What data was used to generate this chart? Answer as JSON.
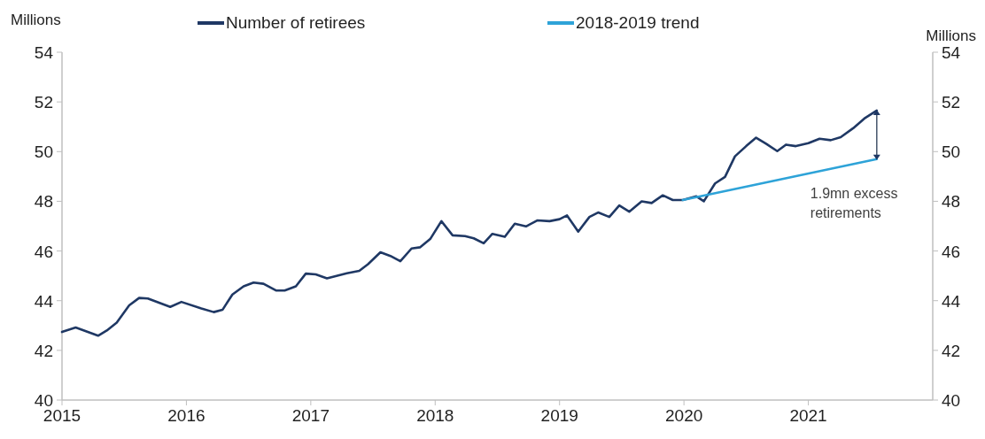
{
  "chart_data": {
    "type": "line",
    "ylabel": "Millions",
    "y2label": "Millions",
    "xlim": [
      2015,
      2022
    ],
    "xticks": [
      2015,
      2016,
      2017,
      2018,
      2019,
      2020,
      2021
    ],
    "ylim": [
      40,
      54
    ],
    "yticks": [
      40,
      42,
      44,
      46,
      48,
      50,
      52,
      54
    ],
    "y2lim": [
      40,
      54
    ],
    "y2ticks": [
      40,
      42,
      44,
      46,
      48,
      50,
      52,
      54
    ],
    "legend": "top",
    "grid": false,
    "marker": "none",
    "line_style": "solid",
    "annotations": [
      {
        "text": "1.9mn excess retirements",
        "x": 2021.55,
        "y": 49.7
      }
    ],
    "series": [
      {
        "name": "Number of retirees",
        "color": "#1f3864",
        "x": [
          2015.0,
          2015.11,
          2015.29,
          2015.36,
          2015.44,
          2015.54,
          2015.62,
          2015.69,
          2015.87,
          2015.96,
          2016.12,
          2016.22,
          2016.29,
          2016.37,
          2016.46,
          2016.54,
          2016.62,
          2016.72,
          2016.79,
          2016.88,
          2016.96,
          2017.04,
          2017.13,
          2017.29,
          2017.39,
          2017.46,
          2017.56,
          2017.64,
          2017.72,
          2017.81,
          2017.88,
          2017.96,
          2018.05,
          2018.14,
          2018.24,
          2018.31,
          2018.39,
          2018.46,
          2018.56,
          2018.64,
          2018.73,
          2018.82,
          2018.92,
          2019.0,
          2019.06,
          2019.15,
          2019.24,
          2019.31,
          2019.4,
          2019.48,
          2019.56,
          2019.66,
          2019.74,
          2019.83,
          2019.91,
          2019.99,
          2020.1,
          2020.16,
          2020.25,
          2020.33,
          2020.41,
          2020.5,
          2020.58,
          2020.66,
          2020.75,
          2020.82,
          2020.9,
          2021.0,
          2021.09,
          2021.18,
          2021.26,
          2021.36,
          2021.45,
          2021.55
        ],
        "values": [
          42.74,
          42.92,
          42.59,
          42.8,
          43.12,
          43.81,
          44.11,
          44.09,
          43.75,
          43.95,
          43.69,
          43.54,
          43.63,
          44.25,
          44.58,
          44.73,
          44.68,
          44.41,
          44.41,
          44.58,
          45.09,
          45.06,
          44.9,
          45.1,
          45.2,
          45.47,
          45.95,
          45.8,
          45.59,
          46.1,
          46.15,
          46.48,
          47.2,
          46.63,
          46.6,
          46.51,
          46.31,
          46.69,
          46.57,
          47.1,
          46.99,
          47.23,
          47.2,
          47.28,
          47.43,
          46.78,
          47.37,
          47.55,
          47.37,
          47.83,
          47.58,
          48.0,
          47.93,
          48.24,
          48.05,
          48.05,
          48.2,
          48.0,
          48.72,
          48.98,
          49.81,
          50.22,
          50.56,
          50.32,
          50.02,
          50.28,
          50.22,
          50.34,
          50.52,
          50.46,
          50.58,
          50.94,
          51.33,
          51.65
        ]
      },
      {
        "name": "2018-2019 trend",
        "color": "#2ea3d8",
        "x": [
          2019.99,
          2021.55
        ],
        "values": [
          48.05,
          49.7
        ]
      }
    ]
  }
}
